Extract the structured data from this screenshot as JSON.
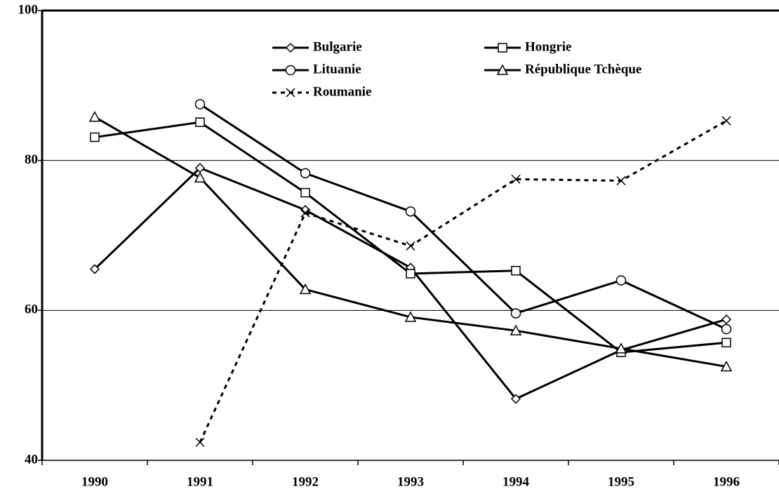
{
  "chart_data": {
    "type": "line",
    "categories": [
      "1990",
      "1991",
      "1992",
      "1993",
      "1994",
      "1995",
      "1996"
    ],
    "series": [
      {
        "name": "Bulgarie",
        "color": "#000000",
        "marker": "diamond",
        "linestyle": "solid",
        "values": [
          65.5,
          79.0,
          73.4,
          65.7,
          48.2,
          54.7,
          58.8
        ]
      },
      {
        "name": "Hongrie",
        "color": "#000000",
        "marker": "square",
        "linestyle": "solid",
        "values": [
          83.1,
          85.1,
          75.7,
          64.9,
          65.3,
          54.4,
          55.7
        ]
      },
      {
        "name": "Lituanie",
        "color": "#000000",
        "marker": "circle",
        "linestyle": "solid",
        "values": [
          null,
          87.5,
          78.3,
          73.2,
          59.6,
          64.0,
          57.5
        ]
      },
      {
        "name": "République Tchèque",
        "color": "#000000",
        "marker": "triangle",
        "linestyle": "solid",
        "values": [
          85.8,
          77.7,
          62.8,
          59.1,
          57.3,
          54.9,
          52.5
        ]
      },
      {
        "name": "Roumanie",
        "color": "#000000",
        "marker": "x",
        "linestyle": "dashed",
        "values": [
          null,
          42.4,
          73.0,
          68.6,
          77.5,
          77.3,
          85.3
        ]
      }
    ],
    "ylim": [
      40,
      100
    ],
    "yticks": [
      40,
      60,
      80,
      100
    ],
    "grid": true,
    "legend": "top"
  }
}
